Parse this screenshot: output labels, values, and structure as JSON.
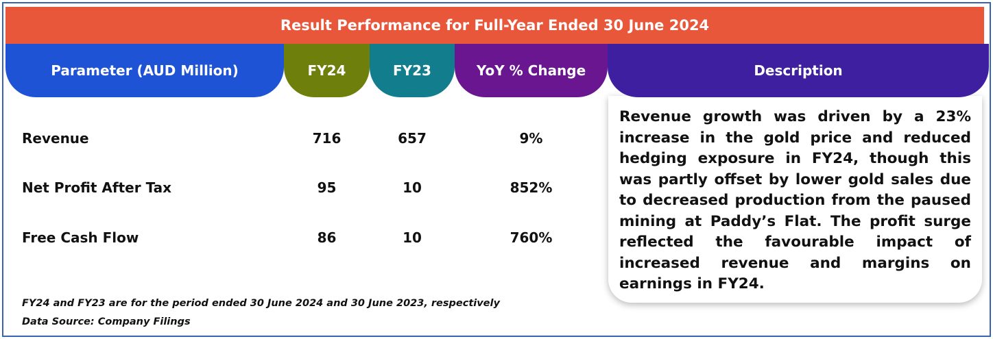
{
  "title": "Result Performance for Full-Year Ended 30 June 2024",
  "headers": {
    "parameter": "Parameter (AUD Million)",
    "fy24": "FY24",
    "fy23": "FY23",
    "yoy": "YoY % Change",
    "description": "Description"
  },
  "rows": [
    {
      "label": "Revenue",
      "fy24": "716",
      "fy23": "657",
      "yoy": "9%"
    },
    {
      "label": "Net Profit After Tax",
      "fy24": "95",
      "fy23": "10",
      "yoy": "852%"
    },
    {
      "label": "Free Cash Flow",
      "fy24": "86",
      "fy23": "10",
      "yoy": "760%"
    }
  ],
  "description": "Revenue growth was driven by a 23% increase in the gold price and reduced hedging exposure in FY24, though this was partly offset by lower gold sales due to decreased production from the paused mining at Paddy’s Flat. The profit surge reflected the favourable impact of increased revenue and margins on earnings in FY24.",
  "footnotes": {
    "period_note": "FY24 and FY23 are for the period ended 30 June 2024 and 30 June 2023, respectively",
    "source": "Data Source: Company Filings"
  },
  "colors": {
    "banner": "#e9573b",
    "parameter_header": "#1f53d6",
    "fy24_header": "#6f7f0b",
    "fy23_header": "#127d8c",
    "yoy_header": "#6a1690",
    "description_header": "#3d1fa0",
    "frame_border": "#3a62b3"
  }
}
